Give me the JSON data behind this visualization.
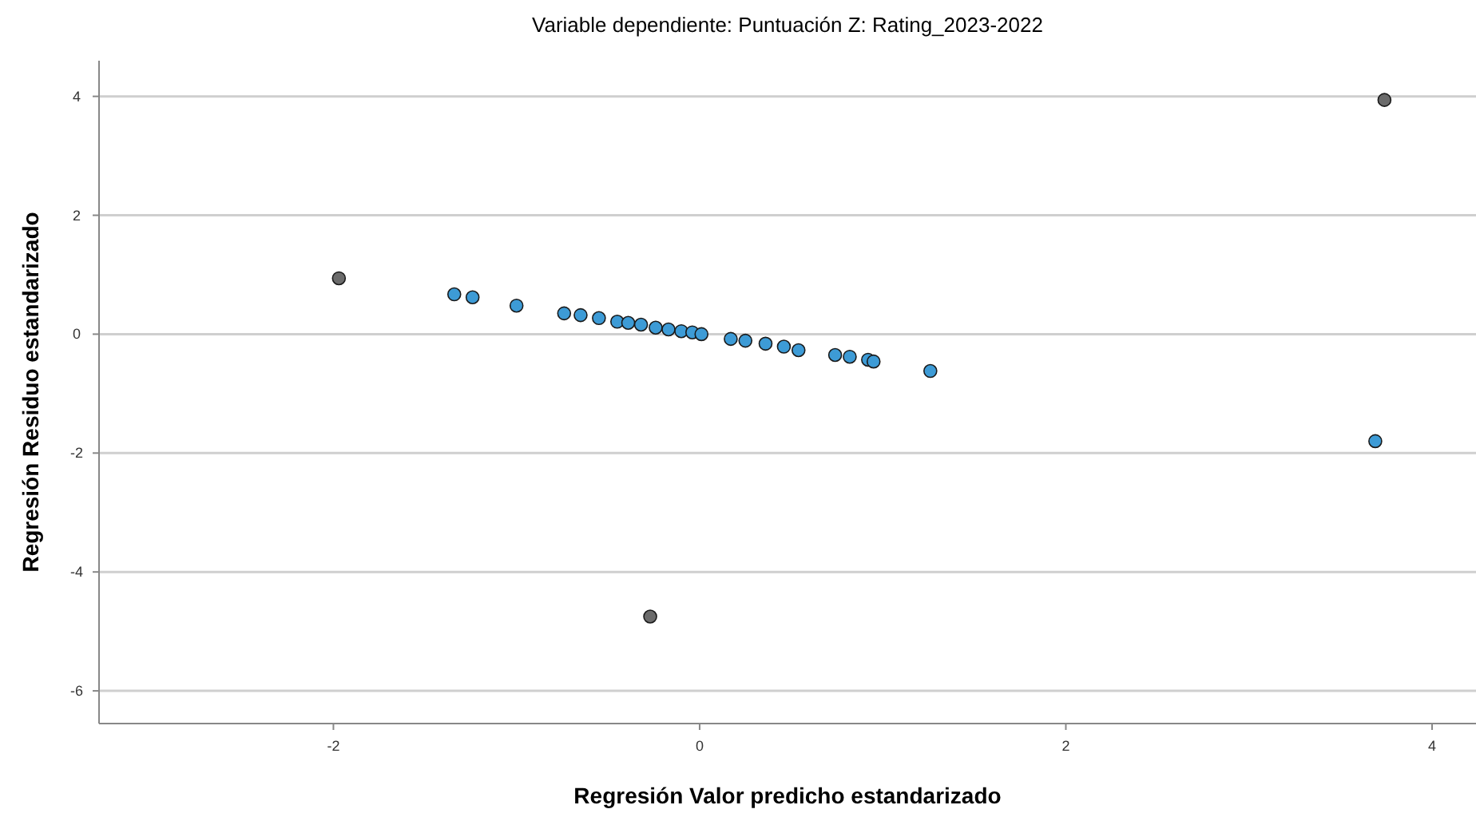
{
  "chart_data": {
    "type": "scatter",
    "title": "Variable dependiente: Puntuación Z:  Rating_2023-2022",
    "xlabel": "Regresión Valor predicho estandarizado",
    "ylabel": "Regresión Residuo estandarizado",
    "xlim": [
      -3.28,
      4.24
    ],
    "ylim": [
      -6.55,
      4.6
    ],
    "xticks": [
      -2,
      0,
      2,
      4
    ],
    "yticks": [
      -6,
      -4,
      -2,
      0,
      2,
      4
    ],
    "grid": "y",
    "marker": "circle",
    "series": [
      {
        "color": "#3d9bd6",
        "x": [
          -1.34,
          -1.24,
          -1.0,
          -0.74,
          -0.65,
          -0.55,
          -0.45,
          -0.39,
          -0.32,
          -0.24,
          -0.17,
          -0.1,
          -0.04,
          0.01,
          0.17,
          0.25,
          0.36,
          0.46,
          0.54,
          0.74,
          0.82,
          0.92,
          0.95,
          1.26,
          3.69
        ],
        "values": [
          0.67,
          0.62,
          0.48,
          0.35,
          0.32,
          0.27,
          0.21,
          0.19,
          0.16,
          0.11,
          0.08,
          0.05,
          0.03,
          0.0,
          -0.08,
          -0.11,
          -0.16,
          -0.21,
          -0.27,
          -0.35,
          -0.38,
          -0.43,
          -0.46,
          -0.62,
          -1.8
        ]
      },
      {
        "color": "#6b6b6b",
        "x": [
          -1.97,
          3.74,
          -0.27
        ],
        "values": [
          0.94,
          3.94,
          -4.75
        ]
      }
    ]
  }
}
